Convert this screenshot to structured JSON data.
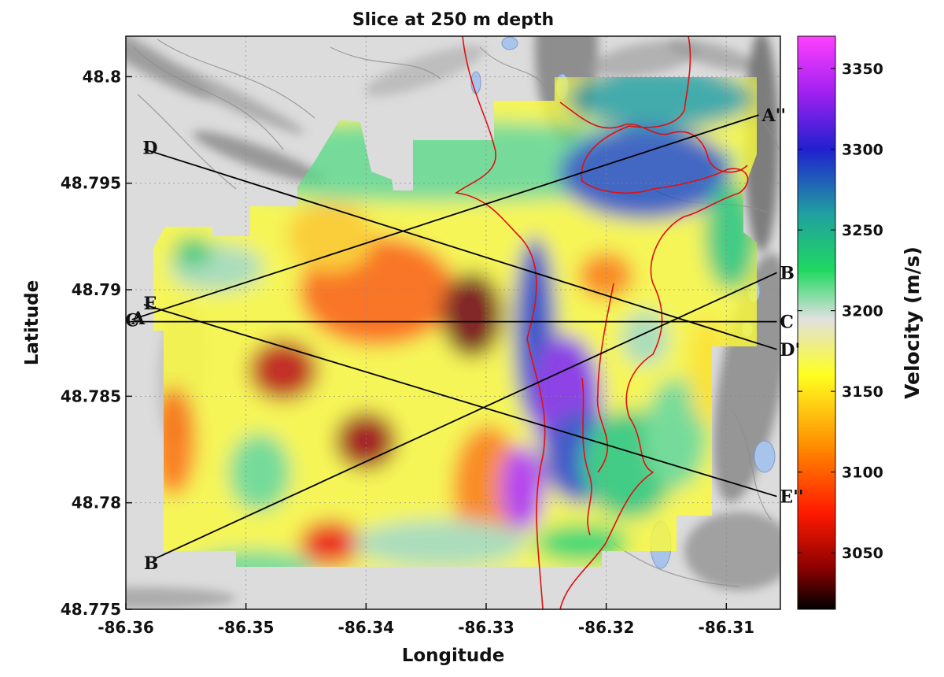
{
  "title": "Slice at 250 m depth",
  "x_axis": {
    "label": "Longitude",
    "ticks": [
      "-86.36",
      "-86.35",
      "-86.34",
      "-86.33",
      "-86.32",
      "-86.31"
    ],
    "tick_values": [
      -86.36,
      -86.35,
      -86.34,
      -86.33,
      -86.32,
      -86.31
    ],
    "range": [
      -86.36,
      -86.3055
    ]
  },
  "y_axis": {
    "label": "Latitude",
    "ticks": [
      "48.8",
      "48.795",
      "48.79",
      "48.785",
      "48.78",
      "48.775"
    ],
    "tick_values": [
      48.8,
      48.795,
      48.79,
      48.785,
      48.78,
      48.775
    ],
    "range": [
      48.775,
      48.8019
    ]
  },
  "colorbar": {
    "label": "Velocity (m/s)",
    "ticks": [
      "3350",
      "3300",
      "3250",
      "3200",
      "3150",
      "3100",
      "3050"
    ],
    "tick_values": [
      3350,
      3300,
      3250,
      3200,
      3150,
      3100,
      3050
    ],
    "range": [
      3015,
      3370
    ],
    "stops": [
      {
        "v": 3015,
        "c": "#000000"
      },
      {
        "v": 3040,
        "c": "#8a0000"
      },
      {
        "v": 3075,
        "c": "#ff1a00"
      },
      {
        "v": 3115,
        "c": "#ff8a00"
      },
      {
        "v": 3160,
        "c": "#ffff20"
      },
      {
        "v": 3195,
        "c": "#e0e0e0"
      },
      {
        "v": 3225,
        "c": "#20d860"
      },
      {
        "v": 3260,
        "c": "#20a0a0"
      },
      {
        "v": 3300,
        "c": "#2020d0"
      },
      {
        "v": 3335,
        "c": "#a020f0"
      },
      {
        "v": 3370,
        "c": "#ff40ff"
      }
    ]
  },
  "profiles": [
    {
      "start": "A",
      "end": "A''",
      "from": [
        -86.3595,
        48.7886
      ],
      "to": [
        -86.3073,
        48.7982
      ]
    },
    {
      "start": "B",
      "end": "B",
      "from": [
        -86.3575,
        48.7774
      ],
      "to": [
        -86.3058,
        48.7908
      ]
    },
    {
      "start": "C",
      "end": "C",
      "from": [
        -86.36,
        48.7885
      ],
      "to": [
        -86.3058,
        48.7885
      ]
    },
    {
      "start": "D",
      "end": "D'",
      "from": [
        -86.3585,
        48.7966
      ],
      "to": [
        -86.3058,
        48.7872
      ]
    },
    {
      "start": "E",
      "end": "E''",
      "from": [
        -86.3585,
        48.7893
      ],
      "to": [
        -86.3058,
        48.7803
      ]
    }
  ],
  "colors": {
    "boundary": "#e01010",
    "profile_line": "#000000",
    "water": "#a9c4ea",
    "terrain": "#d9d9d9"
  }
}
